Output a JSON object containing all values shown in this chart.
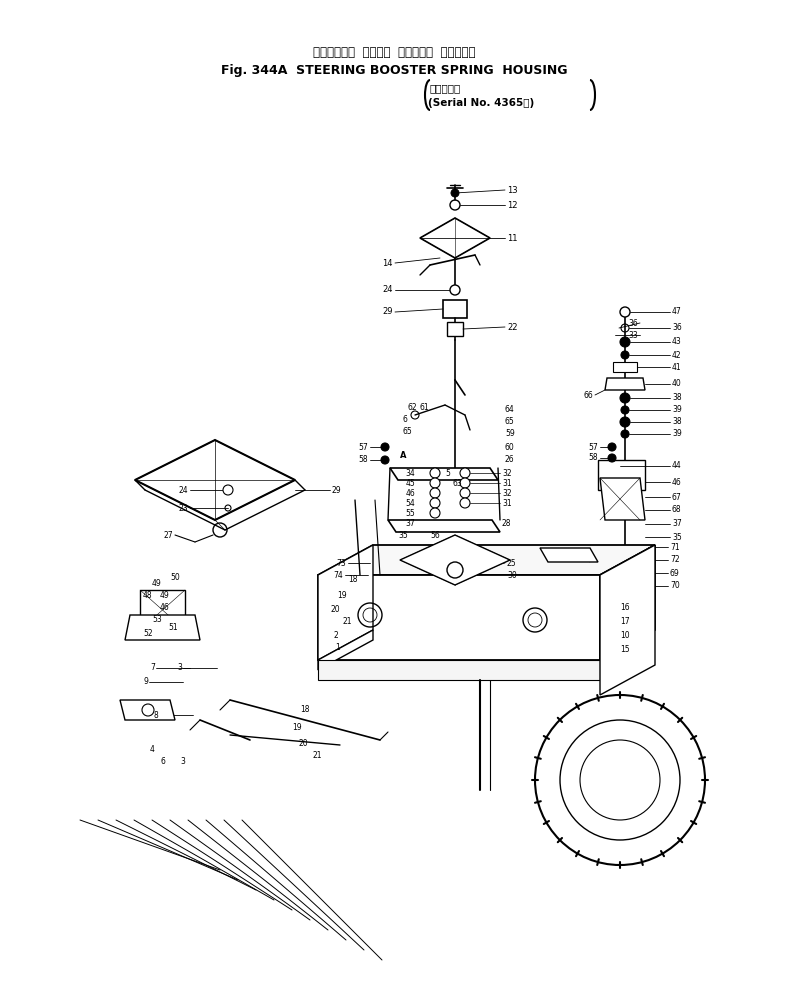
{
  "title_jp": "ステアリング  ブースタ  スプリング  ハウジング",
  "title_en": "Fig. 344A  STEERING BOOSTER SPRING  HOUSING",
  "serial_jp": "（適用号機",
  "serial_en": "(Serial No. 4365～)",
  "bg_color": "#ffffff",
  "figsize": [
    7.88,
    9.89
  ],
  "dpi": 100
}
